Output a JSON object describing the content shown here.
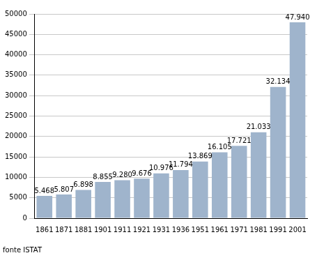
{
  "chart_data": {
    "type": "bar",
    "annotation": "fonte ISTAT",
    "categories": [
      "1861",
      "1871",
      "1881",
      "1901",
      "1911",
      "1921",
      "1931",
      "1936",
      "1951",
      "1961",
      "1971",
      "1981",
      "1991",
      "2001"
    ],
    "values": [
      5468,
      5807,
      6898,
      8855,
      9280,
      9676,
      10976,
      11794,
      13869,
      16105,
      17721,
      21033,
      32134,
      47940
    ],
    "value_labels": [
      "5.468",
      "5.807",
      "6.898",
      "8.855",
      "9.280",
      "9.676",
      "10.976",
      "11.794",
      "13.869",
      "16.105",
      "17.721",
      "21.033",
      "32.134",
      "47.940"
    ],
    "data_labels": true,
    "color": "#9fb4cc",
    "ylim": [
      0,
      50000
    ],
    "yticks": [
      0,
      5000,
      10000,
      15000,
      20000,
      25000,
      30000,
      35000,
      40000,
      45000,
      50000
    ],
    "grid": true
  }
}
